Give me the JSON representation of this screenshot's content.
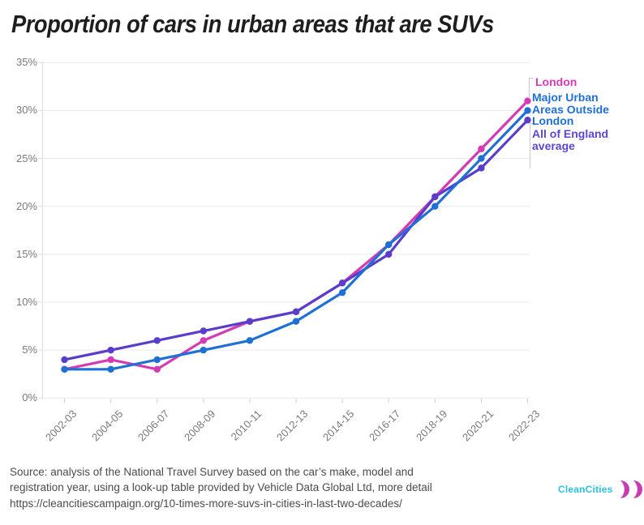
{
  "title": "Proportion of cars in urban areas that are SUVs",
  "chart_data": {
    "type": "line",
    "categories": [
      "2002-03",
      "2004-05",
      "2006-07",
      "2008-09",
      "2010-11",
      "2012-13",
      "2014-15",
      "2016-17",
      "2018-19",
      "2020-21",
      "2022-23"
    ],
    "series": [
      {
        "name": "London",
        "color": "#d53ab5",
        "values": [
          3,
          4,
          3,
          6,
          8,
          9,
          12,
          16,
          21,
          26,
          31
        ]
      },
      {
        "name": "All of England average",
        "color": "#5a3dca",
        "values": [
          4,
          5,
          6,
          7,
          8,
          9,
          12,
          15,
          21,
          24,
          29
        ]
      },
      {
        "name": "Major Urban Areas Outside London",
        "color": "#1f70d4",
        "values": [
          3,
          3,
          4,
          5,
          6,
          8,
          11,
          16,
          20,
          25,
          30
        ]
      }
    ],
    "title": "Proportion of cars in urban areas that are SUVs",
    "xlabel": "",
    "ylabel": "",
    "ylim": [
      0,
      35
    ],
    "ytick_step": 5,
    "ytick_labels": [
      "0%",
      "5%",
      "10%",
      "15%",
      "20%",
      "25%",
      "30%",
      "35%"
    ],
    "grid": true,
    "legend_position": "right"
  },
  "legend": {
    "london": "London",
    "major_urban": "Major Urban\nAreas Outside\nLondon",
    "england": "All of England\naverage"
  },
  "footer": {
    "source_text": "Source: analysis of the National Travel Survey based on the car’s make, model and\nregistration year, using a look-up table provided by Vehicle Data Global Ltd, more detail\nhttps://cleancitiescampaign.org/10-times-more-suvs-in-cities-in-last-two-decades/"
  },
  "logo": {
    "text": "CleanCities",
    "text_color": "#2cc3e4",
    "mark_color": "#c93bb4",
    "mark": "double-crescent"
  },
  "colors": {
    "gridline": "#e9e9e9",
    "axis": "#dcdcdc",
    "tick": "#cfcfcf",
    "axis_text": "#7a7a7a"
  }
}
